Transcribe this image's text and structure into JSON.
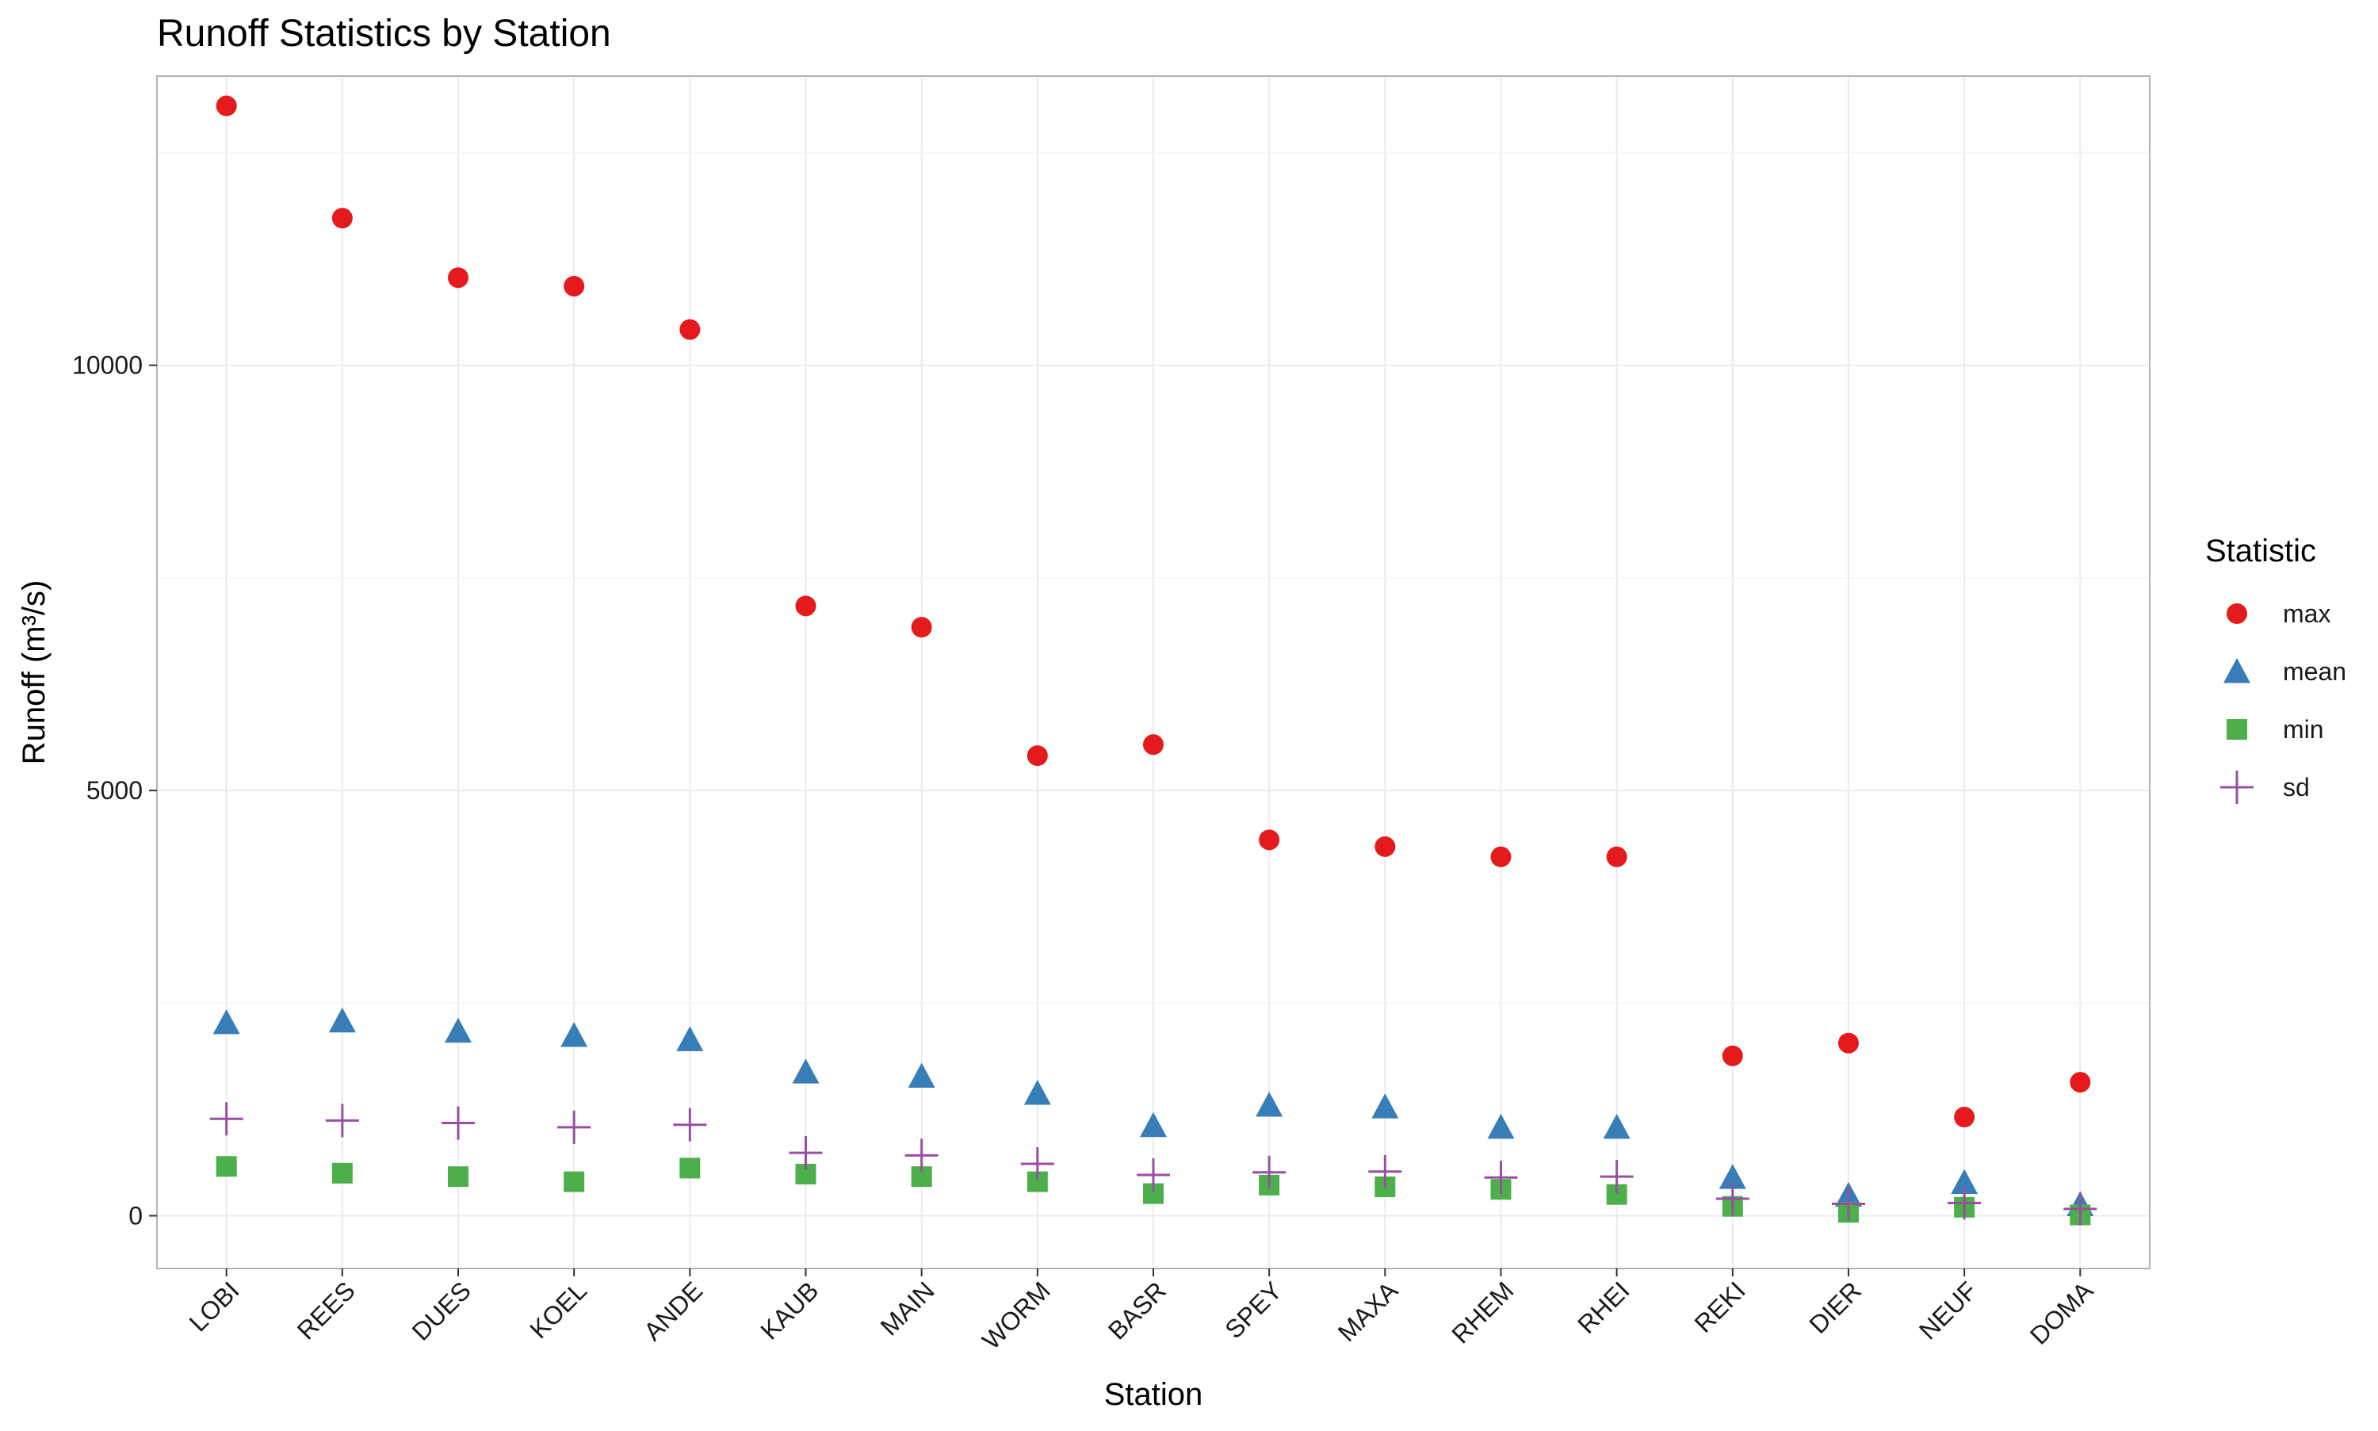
{
  "chart_data": {
    "type": "scatter",
    "title": "Runoff Statistics by Station",
    "xlabel": "Station",
    "ylabel": "Runoff (m³/s)",
    "categories": [
      "LOBI",
      "REES",
      "DUES",
      "KOEL",
      "ANDE",
      "KAUB",
      "MAIN",
      "WORM",
      "BASR",
      "SPEY",
      "MAXA",
      "RHEM",
      "RHEI",
      "REKI",
      "DIER",
      "NEUF",
      "DOMA"
    ],
    "ylim": [
      -620,
      13400
    ],
    "yticks": [
      0,
      5000,
      10000
    ],
    "ytick_labels": [
      "0",
      "5000",
      "10000"
    ],
    "grid": true,
    "legend": {
      "title": "Statistic",
      "position": "right"
    },
    "series": [
      {
        "name": "max",
        "marker": "circle",
        "color": "#E41A1C",
        "values": [
          13050,
          11730,
          11030,
          10930,
          10420,
          7170,
          6920,
          5410,
          5540,
          4420,
          4340,
          4220,
          4220,
          1880,
          2030,
          1160,
          1570
        ]
      },
      {
        "name": "mean",
        "marker": "triangle",
        "color": "#377EB8",
        "values": [
          2270,
          2290,
          2170,
          2120,
          2070,
          1690,
          1640,
          1440,
          1060,
          1300,
          1280,
          1040,
          1040,
          450,
          240,
          390,
          130
        ]
      },
      {
        "name": "min",
        "marker": "square",
        "color": "#4DAF4A",
        "values": [
          580,
          500,
          460,
          400,
          560,
          490,
          460,
          400,
          260,
          360,
          340,
          310,
          250,
          110,
          40,
          100,
          10
        ]
      },
      {
        "name": "sd",
        "marker": "plus",
        "color": "#984EA3",
        "values": [
          1140,
          1120,
          1090,
          1040,
          1070,
          740,
          710,
          610,
          480,
          510,
          520,
          450,
          460,
          200,
          140,
          150,
          80
        ]
      }
    ]
  }
}
